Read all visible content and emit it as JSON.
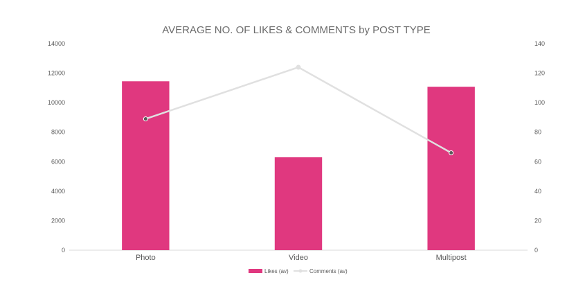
{
  "chart_data": {
    "type": "bar",
    "title": "AVERAGE NO. OF LIKES & COMMENTS by POST TYPE",
    "categories": [
      "Photo",
      "Video",
      "Multipost"
    ],
    "series": [
      {
        "name": "Likes (av)",
        "type": "bar",
        "axis": "left",
        "color": "#E0387F",
        "values": [
          11450,
          6300,
          11080
        ]
      },
      {
        "name": "Comments (av)",
        "type": "line",
        "axis": "right",
        "color": "#E0E0E0",
        "values": [
          89,
          124,
          66
        ]
      }
    ],
    "y_left": {
      "ylim": [
        0,
        14000
      ],
      "ticks": [
        "0",
        "2000",
        "4000",
        "6000",
        "8000",
        "10000",
        "12000",
        "14000"
      ]
    },
    "y_right": {
      "ylim": [
        0,
        140
      ],
      "ticks": [
        "0",
        "20",
        "40",
        "60",
        "80",
        "100",
        "120",
        "140"
      ]
    },
    "grid": false,
    "legend": "bottom"
  }
}
